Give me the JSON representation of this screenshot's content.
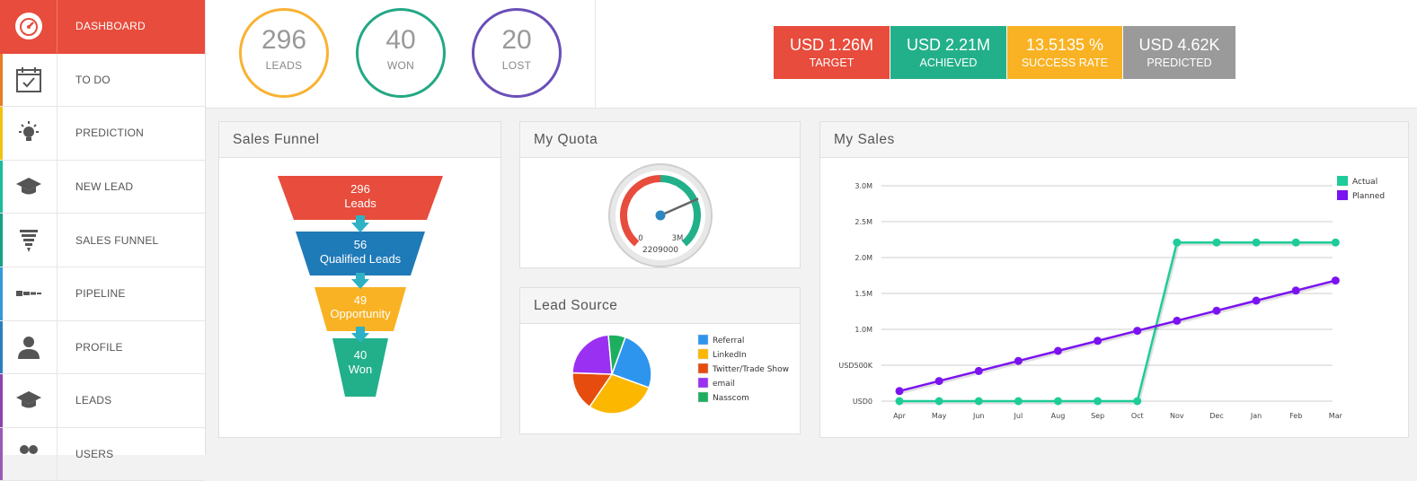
{
  "sidebar": {
    "items": [
      {
        "label": "DASHBOARD",
        "icon": "dashboard-gauge-icon",
        "accent": "#e74c3c",
        "active": true
      },
      {
        "label": "TO DO",
        "icon": "calendar-check-icon",
        "accent": "#e67e22",
        "active": false
      },
      {
        "label": "PREDICTION",
        "icon": "lightbulb-icon",
        "accent": "#f1c40f",
        "active": false
      },
      {
        "label": "NEW LEAD",
        "icon": "graduation-cap-icon",
        "accent": "#1abc9c",
        "active": false
      },
      {
        "label": "SALES FUNNEL",
        "icon": "funnel-icon",
        "accent": "#16a085",
        "active": false
      },
      {
        "label": "PIPELINE",
        "icon": "pipeline-icon",
        "accent": "#3498db",
        "active": false
      },
      {
        "label": "PROFILE",
        "icon": "user-icon",
        "accent": "#2980b9",
        "active": false
      },
      {
        "label": "LEADS",
        "icon": "graduation-cap-icon",
        "accent": "#8e44ad",
        "active": false
      },
      {
        "label": "USERS",
        "icon": "users-icon",
        "accent": "#9b59b6",
        "active": false
      }
    ]
  },
  "header": {
    "kpis": [
      {
        "value": "296",
        "caption": "LEADS",
        "color": "#f9b233"
      },
      {
        "value": "40",
        "caption": "WON",
        "color": "#23a884"
      },
      {
        "value": "20",
        "caption": "LOST",
        "color": "#6a4fb8"
      }
    ],
    "stats": [
      {
        "value": "USD 1.26M",
        "label": "TARGET",
        "color": "#e74c3c"
      },
      {
        "value": "USD 2.21M",
        "label": "ACHIEVED",
        "color": "#22b08a"
      },
      {
        "value": "13.5135 %",
        "label": "SUCCESS RATE",
        "color": "#f9b223"
      },
      {
        "value": "USD 4.62K",
        "label": "PREDICTED",
        "color": "#9a9a9a"
      }
    ]
  },
  "panels": {
    "funnel": {
      "title": "Sales Funnel",
      "stages": [
        {
          "value": "296",
          "label": "Leads",
          "color": "#e74c3c"
        },
        {
          "value": "56",
          "label": "Qualified Leads",
          "color": "#1f7ab8"
        },
        {
          "value": "49",
          "label": "Opportunity",
          "color": "#f9b223"
        },
        {
          "value": "40",
          "label": "Won",
          "color": "#22b08a"
        }
      ]
    },
    "quota": {
      "title": "My Quota",
      "min_label": "0",
      "max_label": "3M",
      "value_label": "2209000",
      "value": 2209000,
      "max": 3000000
    },
    "lead_source": {
      "title": "Lead Source"
    },
    "sales": {
      "title": "My Sales"
    }
  },
  "chart_data": [
    {
      "type": "pie",
      "categories": [
        "Referral",
        "LinkedIn",
        "Twitter/Trade Show",
        "email",
        "Nasscom"
      ],
      "values": [
        25,
        29,
        16,
        23,
        7
      ],
      "colors": [
        "#2e95ef",
        "#fcb800",
        "#e54c0e",
        "#9a30f2",
        "#1eae5f"
      ],
      "legend": "right"
    },
    {
      "type": "line",
      "x": [
        "Apr",
        "May",
        "Jun",
        "Jul",
        "Aug",
        "Sep",
        "Oct",
        "Nov",
        "Dec",
        "Jan",
        "Feb",
        "Mar"
      ],
      "yticks": [
        "USD0",
        "USD500K",
        "1.0M",
        "1.5M",
        "2.0M",
        "2.5M",
        "3.0M"
      ],
      "ylim": [
        0,
        3000000
      ],
      "series": [
        {
          "name": "Actual",
          "color": "#1dcc98",
          "values": [
            0,
            0,
            0,
            0,
            0,
            0,
            0,
            2210000,
            2210000,
            2210000,
            2210000,
            2210000
          ]
        },
        {
          "name": "Planned",
          "color": "#7b13f0",
          "values": [
            140000,
            280000,
            420000,
            560000,
            700000,
            840000,
            980000,
            1120000,
            1260000,
            1400000,
            1540000,
            1680000
          ]
        }
      ],
      "grid": true,
      "legend": "top-right"
    }
  ]
}
